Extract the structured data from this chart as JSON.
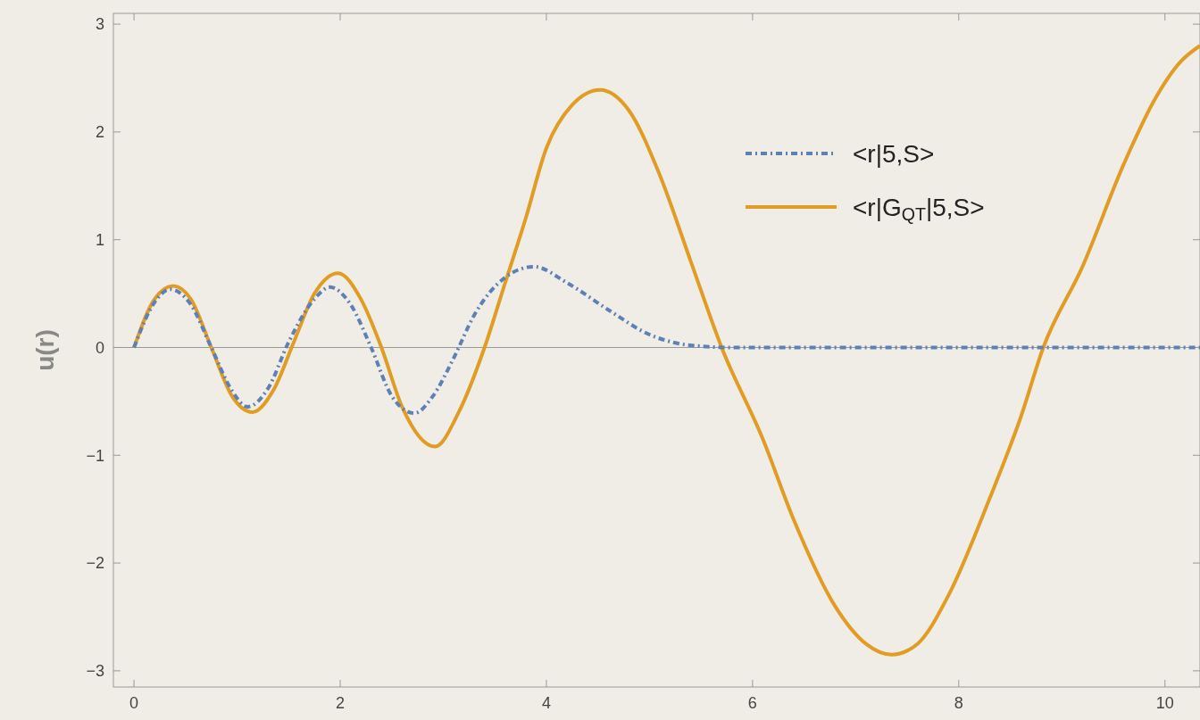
{
  "chart_data": {
    "type": "line",
    "ylabel": "u(r)",
    "xlim": [
      -0.2,
      10.34
    ],
    "ylim": [
      -3.15,
      3.1
    ],
    "xticks": [
      0,
      2,
      4,
      6,
      8,
      10
    ],
    "yticks": [
      -3,
      -2,
      -1,
      0,
      1,
      2,
      3
    ],
    "grid": false,
    "legend": "top right",
    "ref_lines": [
      {
        "axis": "y",
        "value": 0,
        "color": "#999999"
      }
    ],
    "series": [
      {
        "name": "<r|5,S>",
        "color": "#5e81b5",
        "line_style": "dashdot",
        "x": [
          0,
          0.2,
          0.35,
          0.55,
          0.75,
          0.95,
          1.1,
          1.3,
          1.5,
          1.75,
          1.9,
          2.1,
          2.3,
          2.5,
          2.72,
          2.9,
          3.1,
          3.3,
          3.6,
          3.88,
          4.2,
          4.6,
          5.0,
          5.4,
          5.8,
          7,
          8,
          9,
          10.34
        ],
        "values": [
          0,
          0.42,
          0.54,
          0.4,
          0,
          -0.4,
          -0.55,
          -0.38,
          0.05,
          0.45,
          0.56,
          0.4,
          0,
          -0.45,
          -0.61,
          -0.45,
          -0.1,
          0.3,
          0.65,
          0.75,
          0.6,
          0.35,
          0.12,
          0.02,
          0,
          0,
          0,
          0,
          0
        ]
      },
      {
        "name": "<r|G$_{QT}$|5,S>",
        "color": "#e19c24",
        "line_style": "solid",
        "x": [
          0,
          0.2,
          0.38,
          0.55,
          0.75,
          0.95,
          1.15,
          1.35,
          1.55,
          1.75,
          1.98,
          2.2,
          2.4,
          2.6,
          2.92,
          3.15,
          3.4,
          3.6,
          3.8,
          4.0,
          4.25,
          4.52,
          4.8,
          5.1,
          5.4,
          5.7,
          6.1,
          6.4,
          6.8,
          7.1,
          7.35,
          7.6,
          7.9,
          8.3,
          8.6,
          8.82,
          9.2,
          9.6,
          9.9,
          10.15,
          10.34
        ],
        "values": [
          0,
          0.45,
          0.57,
          0.45,
          0,
          -0.45,
          -0.6,
          -0.4,
          0.05,
          0.5,
          0.69,
          0.45,
          0,
          -0.55,
          -0.92,
          -0.6,
          0,
          0.6,
          1.2,
          1.85,
          2.25,
          2.39,
          2.2,
          1.6,
          0.8,
          0,
          -0.85,
          -1.6,
          -2.4,
          -2.75,
          -2.85,
          -2.75,
          -2.3,
          -1.4,
          -0.65,
          0,
          0.75,
          1.7,
          2.3,
          2.65,
          2.8
        ]
      }
    ]
  }
}
